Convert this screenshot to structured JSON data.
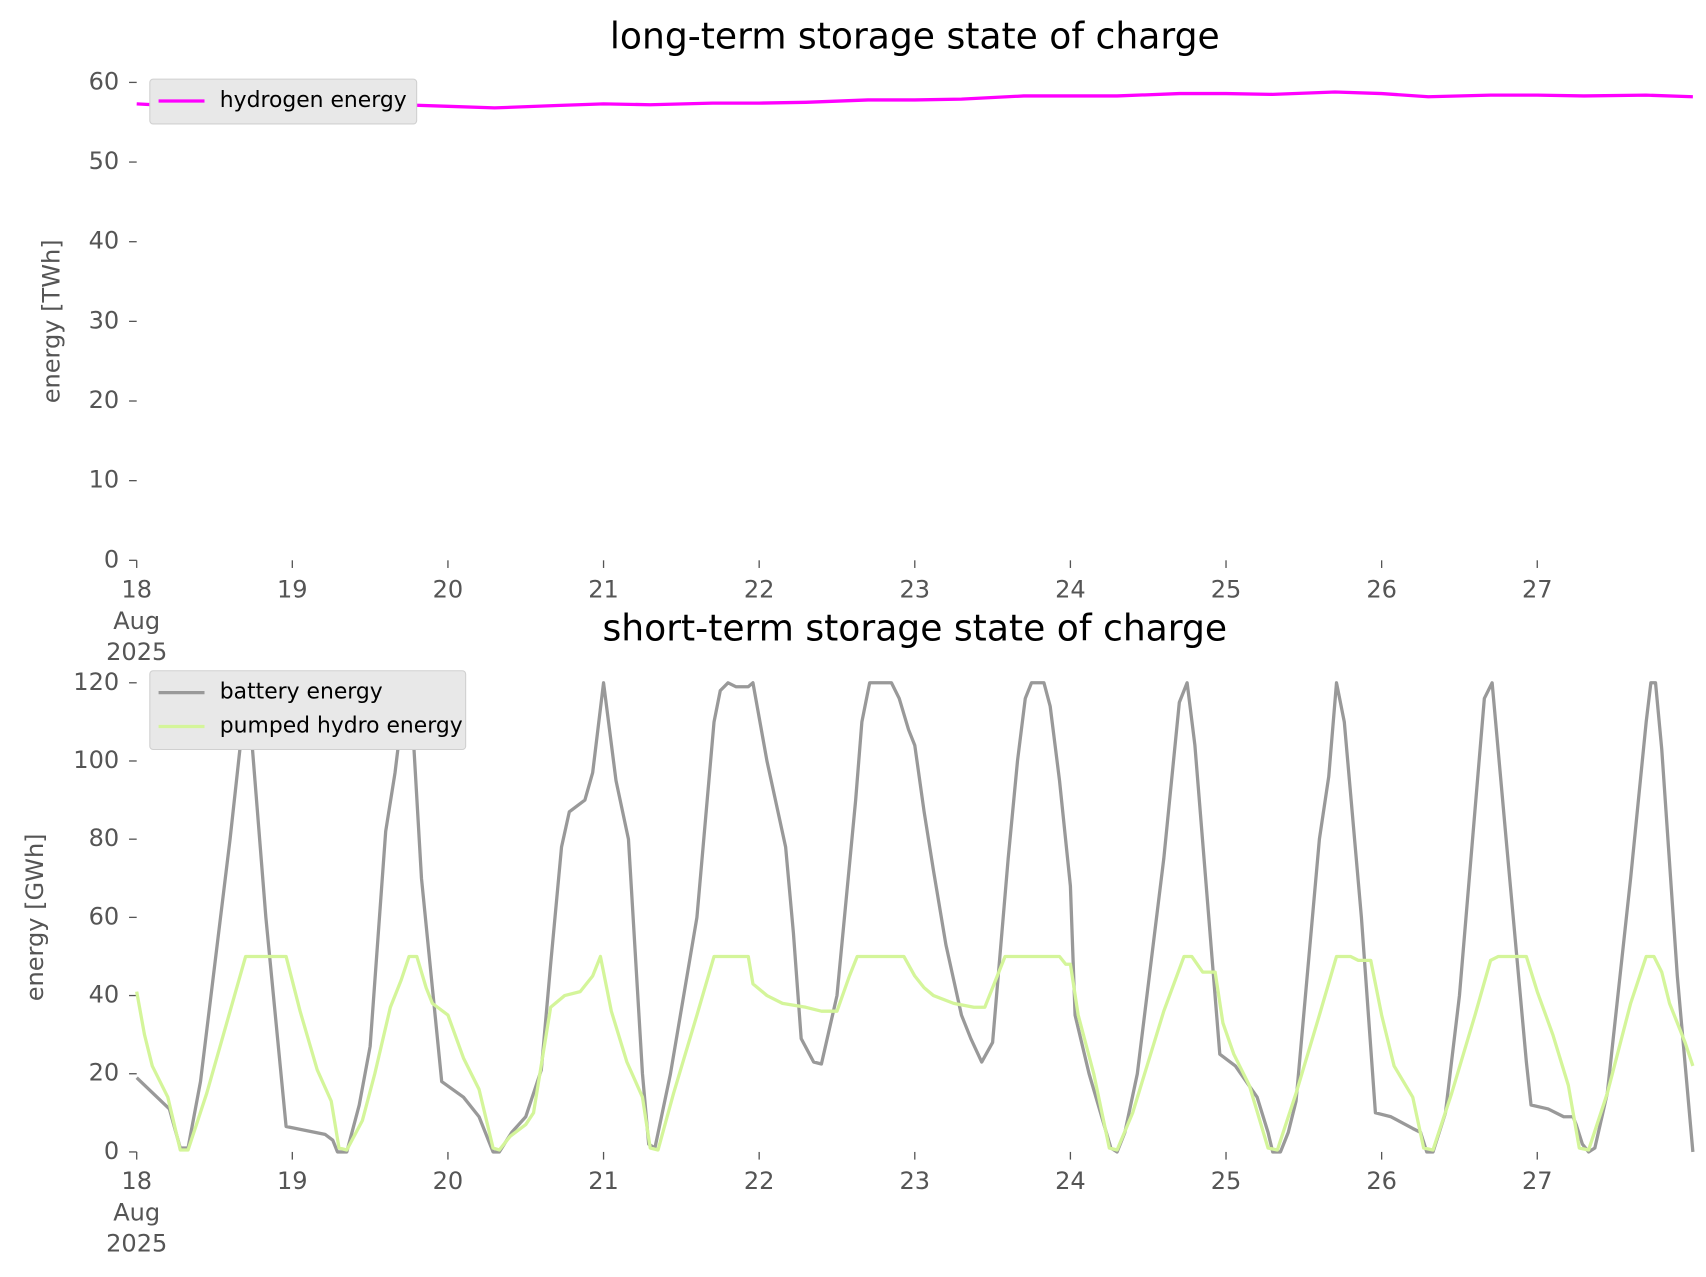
{
  "chart_data": [
    {
      "type": "line",
      "title": "long-term storage state of charge",
      "y_label": "energy [TWh]",
      "xlim": [
        18,
        28
      ],
      "ylim": [
        0,
        60
      ],
      "xticks": [
        {
          "value": 18,
          "label": "18\nAug\n2025"
        },
        19,
        20,
        21,
        22,
        23,
        24,
        25,
        26,
        27
      ],
      "yticks": [
        0,
        10,
        20,
        30,
        40,
        50,
        60
      ],
      "legend": "upper left",
      "series": [
        {
          "name": "hydrogen energy",
          "color": "#ff00ff",
          "x": [
            18.0,
            18.3,
            18.7,
            19.3,
            19.7,
            20.0,
            20.3,
            20.7,
            21.0,
            21.3,
            21.7,
            22.0,
            22.3,
            22.7,
            23.0,
            23.3,
            23.7,
            24.0,
            24.3,
            24.7,
            25.0,
            25.3,
            25.7,
            26.0,
            26.3,
            26.7,
            27.0,
            27.3,
            27.7,
            28.0
          ],
          "values": [
            57.3,
            57.0,
            57.1,
            56.8,
            57.2,
            57.0,
            56.8,
            57.1,
            57.3,
            57.2,
            57.4,
            57.4,
            57.5,
            57.8,
            57.8,
            57.9,
            58.3,
            58.3,
            58.3,
            58.6,
            58.6,
            58.5,
            58.8,
            58.6,
            58.2,
            58.4,
            58.4,
            58.3,
            58.4,
            58.2
          ]
        }
      ]
    },
    {
      "type": "line",
      "title": "short-term storage state of charge",
      "y_label": "energy [GWh]",
      "xlim": [
        18,
        28
      ],
      "ylim": [
        0,
        120
      ],
      "xticks": [
        {
          "value": 18,
          "label": "18\nAug\n2025"
        },
        19,
        20,
        21,
        22,
        23,
        24,
        25,
        26,
        27
      ],
      "yticks": [
        0,
        20,
        40,
        60,
        80,
        100,
        120
      ],
      "legend": "upper left",
      "series": [
        {
          "name": "battery energy",
          "color": "#999999",
          "x": [
            18.0,
            18.21,
            18.28,
            18.33,
            18.41,
            18.6,
            18.71,
            18.83,
            18.96,
            19.21,
            19.26,
            19.29,
            19.35,
            19.43,
            19.5,
            19.6,
            19.66,
            19.73,
            19.76,
            19.83,
            19.96,
            20.1,
            20.2,
            20.29,
            20.33,
            20.41,
            20.5,
            20.6,
            20.66,
            20.73,
            20.78,
            20.88,
            20.93,
            21.0,
            21.08,
            21.16,
            21.25,
            21.29,
            21.33,
            21.43,
            21.6,
            21.71,
            21.75,
            21.8,
            21.85,
            21.93,
            21.96,
            22.05,
            22.17,
            22.22,
            22.27,
            22.35,
            22.4,
            22.5,
            22.62,
            22.66,
            22.71,
            22.85,
            22.9,
            22.96,
            23.0,
            23.06,
            23.12,
            23.2,
            23.25,
            23.3,
            23.36,
            23.43,
            23.5,
            23.6,
            23.66,
            23.71,
            23.75,
            23.83,
            23.87,
            23.93,
            24.0,
            24.03,
            24.12,
            24.26,
            24.3,
            24.35,
            24.43,
            24.6,
            24.7,
            24.75,
            24.8,
            24.96,
            25.06,
            25.2,
            25.27,
            25.3,
            25.35,
            25.4,
            25.45,
            25.6,
            25.66,
            25.71,
            25.76,
            25.87,
            25.96,
            26.06,
            26.2,
            26.25,
            26.29,
            26.33,
            26.41,
            26.5,
            26.66,
            26.71,
            26.8,
            26.93,
            26.96,
            27.07,
            27.17,
            27.23,
            27.25,
            27.29,
            27.33,
            27.37,
            27.45,
            27.6,
            27.7,
            27.73,
            27.76,
            27.8,
            27.9,
            28.0
          ],
          "values": [
            19,
            11,
            1,
            1,
            18,
            80,
            120,
            60,
            6.5,
            4.5,
            3,
            0,
            0,
            12,
            27,
            82,
            97,
            120,
            118,
            70,
            18,
            14,
            9,
            0,
            0,
            5,
            9,
            21,
            48,
            78,
            87,
            90,
            97,
            120,
            95,
            80,
            20,
            2,
            1,
            20,
            60,
            110,
            118,
            120,
            119,
            119,
            120,
            100,
            78,
            56,
            29,
            23,
            22.5,
            40,
            90,
            110,
            120,
            120,
            116,
            108,
            104,
            87,
            72,
            53,
            44,
            35,
            29,
            23,
            28,
            75,
            100,
            116,
            120,
            120,
            114,
            95,
            68,
            35,
            20,
            1,
            0,
            5,
            20,
            75,
            115,
            120,
            104,
            25,
            22,
            14,
            5,
            0,
            0,
            5,
            13,
            80,
            96,
            120,
            110,
            60,
            10,
            9,
            6,
            5,
            0,
            0,
            10,
            40,
            116,
            120,
            80,
            23,
            12,
            11,
            9,
            9,
            7,
            2,
            0,
            1,
            15,
            70,
            110,
            120,
            120,
            103,
            45,
            0
          ]
        },
        {
          "name": "pumped hydro energy",
          "color": "#d4f59a",
          "x": [
            18.0,
            18.05,
            18.1,
            18.2,
            18.28,
            18.33,
            18.45,
            18.6,
            18.7,
            18.96,
            19.05,
            19.16,
            19.25,
            19.3,
            19.35,
            19.45,
            19.53,
            19.63,
            19.7,
            19.75,
            19.8,
            19.86,
            19.9,
            20.0,
            20.1,
            20.2,
            20.29,
            20.33,
            20.4,
            20.5,
            20.55,
            20.66,
            20.75,
            20.85,
            20.93,
            20.98,
            21.05,
            21.15,
            21.25,
            21.3,
            21.35,
            21.45,
            21.6,
            21.71,
            21.93,
            21.96,
            22.05,
            22.15,
            22.3,
            22.4,
            22.5,
            22.58,
            22.63,
            22.93,
            23.0,
            23.06,
            23.12,
            23.25,
            23.38,
            23.45,
            23.53,
            23.58,
            23.93,
            23.97,
            24.0,
            24.05,
            24.15,
            24.25,
            24.3,
            24.4,
            24.6,
            24.73,
            24.78,
            24.85,
            24.93,
            24.98,
            25.05,
            25.15,
            25.27,
            25.33,
            25.45,
            25.6,
            25.71,
            25.8,
            25.85,
            25.93,
            26.0,
            26.08,
            26.2,
            26.27,
            26.33,
            26.45,
            26.6,
            26.7,
            26.75,
            26.93,
            27.0,
            27.1,
            27.2,
            27.27,
            27.33,
            27.45,
            27.6,
            27.7,
            27.75,
            27.8,
            27.85,
            27.95,
            28.0
          ],
          "values": [
            41,
            30,
            22,
            14,
            0.5,
            0.5,
            15,
            36,
            50,
            50,
            36,
            21,
            13,
            1,
            0.5,
            8,
            20,
            37,
            44,
            50,
            50,
            42,
            38,
            35,
            24,
            16,
            1,
            0.5,
            4,
            7,
            10,
            37,
            40,
            41,
            45,
            50,
            36,
            23,
            14,
            1,
            0.5,
            15,
            35,
            50,
            50,
            43,
            40,
            38,
            37,
            36,
            36,
            45,
            50,
            50,
            45,
            42,
            40,
            38,
            37,
            37,
            45,
            50,
            50,
            48,
            48,
            35,
            20,
            1,
            0.5,
            10,
            36,
            50,
            50,
            46,
            46,
            33,
            25,
            17,
            1,
            0.5,
            15,
            35,
            50,
            50,
            49,
            49,
            35,
            22,
            14,
            1,
            0.5,
            15,
            35,
            49,
            50,
            50,
            41,
            30,
            17,
            1,
            0.5,
            15,
            38,
            50,
            50,
            46,
            38,
            28,
            22
          ]
        }
      ]
    }
  ]
}
